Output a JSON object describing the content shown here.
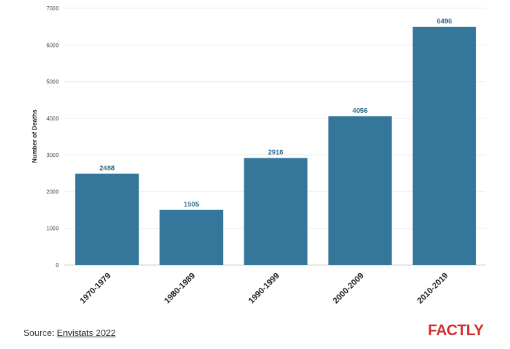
{
  "chart_data": {
    "type": "bar",
    "categories": [
      "1970-1979",
      "1980-1989",
      "1990-1999",
      "2000-2009",
      "2010-2019"
    ],
    "values": [
      2488,
      1505,
      2916,
      4056,
      6496
    ],
    "title": "",
    "xlabel": "",
    "ylabel": "Number of Deaths",
    "ylim": [
      0,
      7000
    ],
    "yticks": [
      0,
      1000,
      2000,
      3000,
      4000,
      5000,
      6000,
      7000
    ],
    "grid": true,
    "legend": "none",
    "bar_color": "#35779b",
    "value_label_color": "#2e6b8e"
  },
  "footer": {
    "source_prefix": "Source: ",
    "source_link": "Envistats 2022",
    "logo_text": "FACTLY",
    "logo_color": "#d32f2f"
  }
}
